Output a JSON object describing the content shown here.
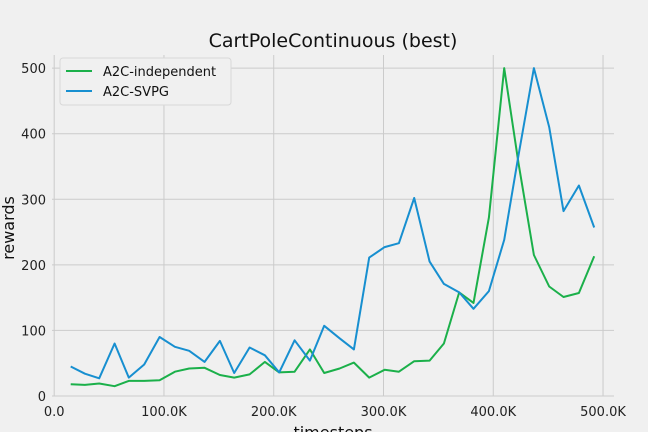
{
  "chart_data": {
    "type": "line",
    "title": "CartPoleContinuous (best)",
    "xlabel": "timesteps",
    "ylabel": "rewards",
    "xlim": [
      -2000,
      510000
    ],
    "ylim": [
      0,
      520
    ],
    "xticks": [
      0,
      100000,
      200000,
      300000,
      400000,
      500000
    ],
    "xtick_labels": [
      "0.0",
      "100.0K",
      "200.0K",
      "300.0K",
      "400.0K",
      "500.0K"
    ],
    "yticks": [
      0,
      100,
      200,
      300,
      400,
      500
    ],
    "ytick_labels": [
      "0",
      "100",
      "200",
      "300",
      "400",
      "500"
    ],
    "grid": true,
    "legend_position": "top-left",
    "series": [
      {
        "name": "A2C-independent",
        "color": "#1bb04a",
        "x": [
          15000,
          28000,
          41000,
          55000,
          68000,
          82000,
          96000,
          110000,
          123000,
          137000,
          151000,
          164000,
          178000,
          192000,
          205000,
          219000,
          233000,
          246000,
          260000,
          273000,
          287000,
          301000,
          314000,
          328000,
          342000,
          355000,
          369000,
          382000,
          396000,
          410000,
          423000,
          437000,
          451000,
          464000,
          478000,
          492000
        ],
        "y": [
          18,
          17,
          19,
          15,
          23,
          23,
          24,
          37,
          42,
          43,
          32,
          28,
          33,
          52,
          36,
          37,
          71,
          35,
          42,
          51,
          28,
          40,
          37,
          53,
          54,
          80,
          158,
          142,
          272,
          500,
          355,
          215,
          167,
          151,
          157,
          213
        ]
      },
      {
        "name": "A2C-SVPG",
        "color": "#178fd0",
        "x": [
          15000,
          28000,
          41000,
          55000,
          68000,
          82000,
          96000,
          110000,
          123000,
          137000,
          151000,
          164000,
          178000,
          192000,
          205000,
          219000,
          233000,
          246000,
          260000,
          273000,
          287000,
          301000,
          314000,
          328000,
          342000,
          355000,
          369000,
          382000,
          396000,
          410000,
          423000,
          437000,
          451000,
          464000,
          478000,
          492000
        ],
        "y": [
          45,
          34,
          27,
          80,
          28,
          48,
          90,
          75,
          69,
          52,
          84,
          35,
          74,
          62,
          36,
          85,
          54,
          107,
          88,
          71,
          211,
          227,
          233,
          302,
          205,
          171,
          158,
          133,
          160,
          238,
          367,
          500,
          410,
          282,
          321,
          257
        ]
      }
    ]
  }
}
